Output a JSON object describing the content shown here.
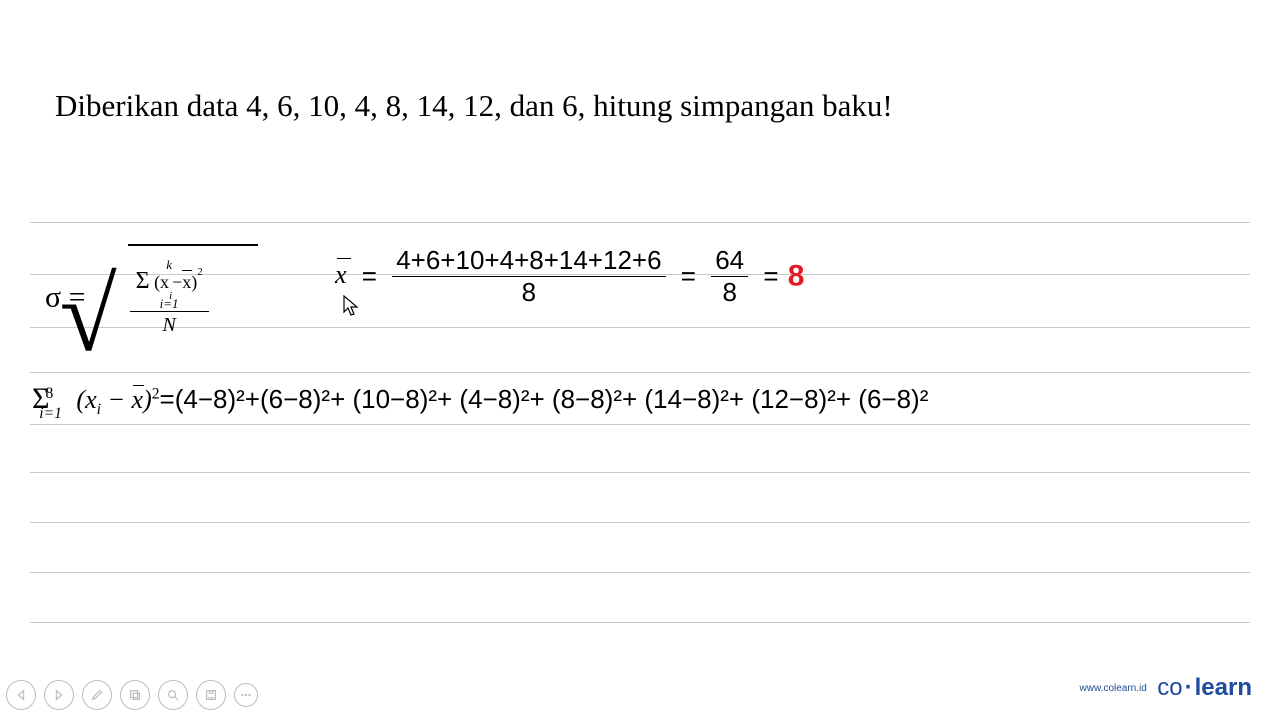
{
  "colors": {
    "text": "#000000",
    "ruled_line": "#c8c8c8",
    "result_red": "#e31b23",
    "control_gray": "#bdbdbd",
    "logo_blue": "#1e4b9b"
  },
  "question": "Diberikan data 4, 6, 10, 4, 8, 14, 12, dan 6, hitung simpangan baku!",
  "sigma_formula": {
    "lhs": "σ  =",
    "sum_limits_top": "k",
    "sum_sym": "Σ",
    "sum_body": "(x",
    "sum_body_sub": "i",
    "sum_body2": "−x̄)",
    "sum_exp": "2",
    "sum_limits_bot": "i=1",
    "denom": "N"
  },
  "mean_calc": {
    "xbar": "x",
    "eq1": "=",
    "frac1_num": "4+6+10+4+8+14+12+6",
    "frac1_den": "8",
    "eq2": "=",
    "frac2_num": "64",
    "frac2_den": "8",
    "eq3": "=",
    "result": "8"
  },
  "sum_sq": {
    "sigma": "Σ",
    "upper": "8",
    "lower": "i=1",
    "body_italic": "(x",
    "body_sub": "i",
    "body_italic2": " − x̄)",
    "body_sup": "2",
    "expansion": "=(4−8)²+(6−8)²+ (10−8)²+ (4−8)²+ (8−8)²+ (14−8)²+ (12−8)²+ (6−8)²"
  },
  "ruled_line_positions": [
    0,
    52,
    105,
    150,
    202,
    250,
    300,
    350,
    400
  ],
  "controls": [
    {
      "name": "prev-button",
      "icon": "triangle-left"
    },
    {
      "name": "next-button",
      "icon": "triangle-right"
    },
    {
      "name": "pen-button",
      "icon": "pen"
    },
    {
      "name": "copy-button",
      "icon": "copy"
    },
    {
      "name": "zoom-button",
      "icon": "magnify"
    },
    {
      "name": "save-button",
      "icon": "floppy"
    },
    {
      "name": "more-button",
      "icon": "dots"
    }
  ],
  "logo": {
    "url": "www.colearn.id",
    "co": "co",
    "dot": "·",
    "learn": "learn"
  }
}
